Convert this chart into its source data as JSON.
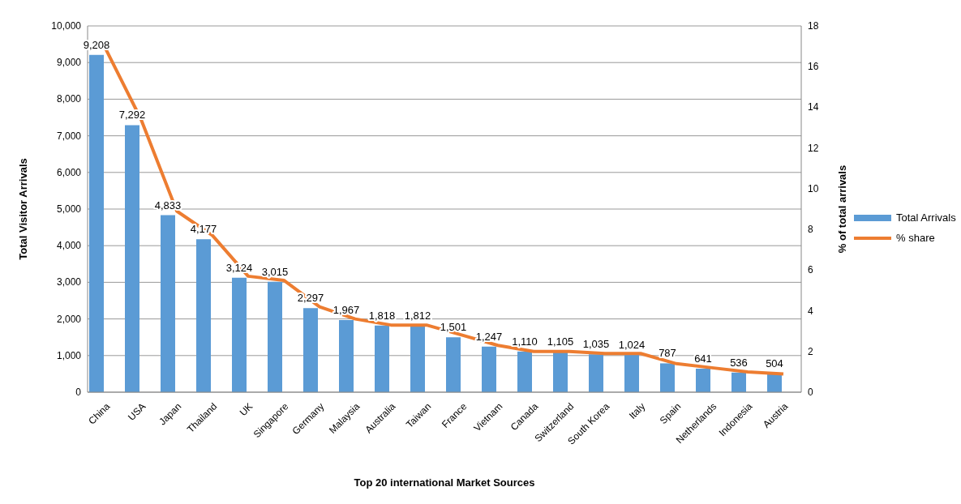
{
  "chart_data": {
    "type": "bar",
    "xlabel": "Top 20 international Market Sources",
    "ylabel": "Total Visitor Arrivals",
    "y2label": "% of total arrivals",
    "categories": [
      "China",
      "USA",
      "Japan",
      "Thailand",
      "UK",
      "Singapore",
      "Germany",
      "Malaysia",
      "Australia",
      "Taiwan",
      "France",
      "Vietnam",
      "Canada",
      "Switzerland",
      "South Korea",
      "Italy",
      "Spain",
      "Netherlands",
      "Indonesia",
      "Austria"
    ],
    "series": [
      {
        "name": "Total Arrivals",
        "color": "#5b9bd5",
        "values": [
          9208,
          7292,
          4833,
          4177,
          3124,
          3015,
          2297,
          1967,
          1818,
          1812,
          1501,
          1247,
          1110,
          1105,
          1035,
          1024,
          787,
          641,
          536,
          504
        ],
        "value_labels": [
          "9,208",
          "7,292",
          "4,833",
          "4,177",
          "3,124",
          "3,015",
          "2,297",
          "1,967",
          "1,818",
          "1,812",
          "1,501",
          "1,247",
          "1,110",
          "1,105",
          "1,035",
          "1,024",
          "787",
          "641",
          "536",
          "504"
        ]
      },
      {
        "name": "% share",
        "type": "line",
        "axis": "y2",
        "color": "#ed7d31",
        "values": [
          16.9,
          13.4,
          8.9,
          7.7,
          5.7,
          5.5,
          4.2,
          3.6,
          3.3,
          3.3,
          2.8,
          2.3,
          2.0,
          2.0,
          1.9,
          1.9,
          1.4,
          1.2,
          1.0,
          0.9
        ]
      }
    ],
    "ylim": [
      0,
      10000
    ],
    "yticks": [
      0,
      {
        "value": 1000,
        "label": "1,000"
      },
      {
        "value": 2000,
        "label": "2,000"
      },
      {
        "value": 3000,
        "label": "3,000"
      },
      {
        "value": 4000,
        "label": "4,000"
      },
      {
        "value": 5000,
        "label": "5,000"
      },
      {
        "value": 6000,
        "label": "6,000"
      },
      {
        "value": 7000,
        "label": "7,000"
      },
      {
        "value": 8000,
        "label": "8,000"
      },
      {
        "value": 9000,
        "label": "9,000"
      },
      {
        "value": 10000,
        "label": "10,000"
      }
    ],
    "y2lim": [
      0,
      18
    ],
    "y2ticks": [
      0,
      2,
      4,
      6,
      8,
      10,
      12,
      14,
      16,
      18
    ],
    "grid": "y",
    "legend": "right"
  }
}
